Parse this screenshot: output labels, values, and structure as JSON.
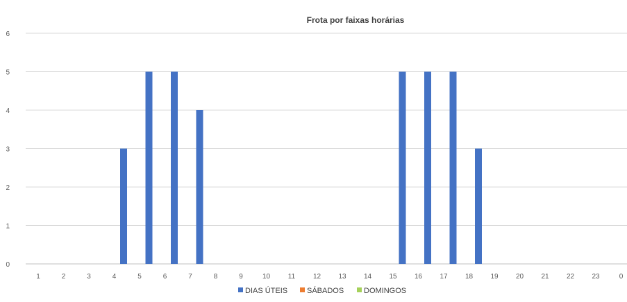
{
  "chart_data": {
    "type": "bar",
    "title": "Frota por faixas horárias",
    "xlabel": "",
    "ylabel": "",
    "ylim": [
      0,
      6
    ],
    "yticks": [
      "0",
      "1",
      "2",
      "3",
      "4",
      "5",
      "6"
    ],
    "grid": true,
    "legend_position": "bottom",
    "categories": [
      "1",
      "2",
      "3",
      "4",
      "5",
      "6",
      "7",
      "8",
      "9",
      "10",
      "11",
      "12",
      "13",
      "14",
      "15",
      "16",
      "17",
      "18",
      "19",
      "20",
      "21",
      "22",
      "23",
      "0"
    ],
    "series": [
      {
        "name": "DIAS ÚTEIS",
        "color": "#4472C4",
        "values": [
          0,
          0,
          0,
          0,
          3,
          5,
          5,
          4,
          0,
          0,
          0,
          0,
          0,
          0,
          0,
          5,
          5,
          5,
          3,
          0,
          0,
          0,
          0,
          0
        ]
      },
      {
        "name": "SÁBADOS",
        "color": "#ED7D31",
        "values": [
          0,
          0,
          0,
          0,
          0,
          0,
          0,
          0,
          0,
          0,
          0,
          0,
          0,
          0,
          0,
          0,
          0,
          0,
          0,
          0,
          0,
          0,
          0,
          0
        ]
      },
      {
        "name": "DOMINGOS",
        "color": "#A5D15A",
        "values": [
          0,
          0,
          0,
          0,
          0,
          0,
          0,
          0,
          0,
          0,
          0,
          0,
          0,
          0,
          0,
          0,
          0,
          0,
          0,
          0,
          0,
          0,
          0,
          0
        ]
      }
    ]
  }
}
